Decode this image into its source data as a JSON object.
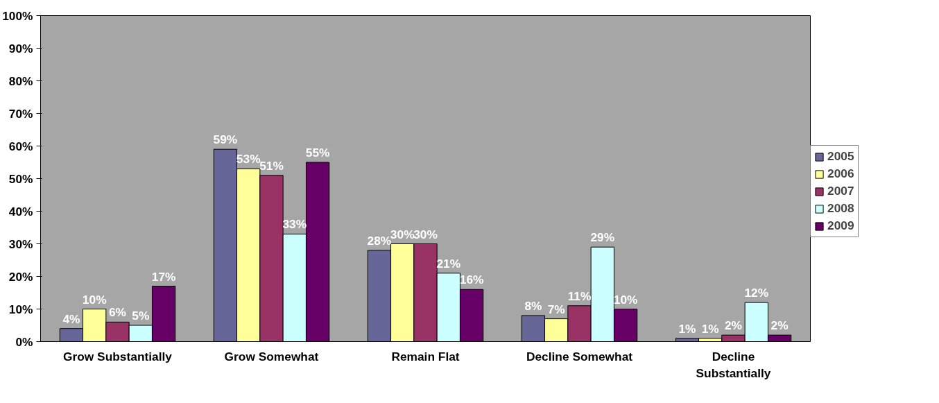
{
  "chart_data": {
    "type": "bar",
    "categories": [
      "Grow Substantially",
      "Grow Somewhat",
      "Remain Flat",
      "Decline Somewhat",
      "Decline Substantially"
    ],
    "series": [
      {
        "name": "2005",
        "color": "#666699",
        "values": [
          4,
          59,
          28,
          8,
          1
        ],
        "value_labels": [
          "4%",
          "59%",
          "28%",
          "8%",
          "1%"
        ]
      },
      {
        "name": "2006",
        "color": "#ffff99",
        "values": [
          10,
          53,
          30,
          7,
          1
        ],
        "value_labels": [
          "10%",
          "53%",
          "30%",
          "7%",
          "1%"
        ]
      },
      {
        "name": "2007",
        "color": "#993366",
        "values": [
          6,
          51,
          30,
          11,
          2
        ],
        "value_labels": [
          "6%",
          "51%",
          "30%",
          "11%",
          "2%"
        ]
      },
      {
        "name": "2008",
        "color": "#ccffff",
        "values": [
          5,
          33,
          21,
          29,
          12
        ],
        "value_labels": [
          "5%",
          "33%",
          "21%",
          "29%",
          "12%"
        ]
      },
      {
        "name": "2009",
        "color": "#660066",
        "values": [
          17,
          55,
          16,
          10,
          2
        ],
        "value_labels": [
          "17%",
          "55%",
          "16%",
          "10%",
          "2%"
        ]
      }
    ],
    "ylim": [
      0,
      100
    ],
    "yticks": [
      {
        "value": 0,
        "label": "0%"
      },
      {
        "value": 10,
        "label": "10%"
      },
      {
        "value": 20,
        "label": "20%"
      },
      {
        "value": 30,
        "label": "30%"
      },
      {
        "value": 40,
        "label": "40%"
      },
      {
        "value": 50,
        "label": "50%"
      },
      {
        "value": 60,
        "label": "60%"
      },
      {
        "value": 70,
        "label": "70%"
      },
      {
        "value": 80,
        "label": "80%"
      },
      {
        "value": 90,
        "label": "90%"
      },
      {
        "value": 100,
        "label": "100%"
      }
    ],
    "grid": false,
    "legend": "right"
  }
}
